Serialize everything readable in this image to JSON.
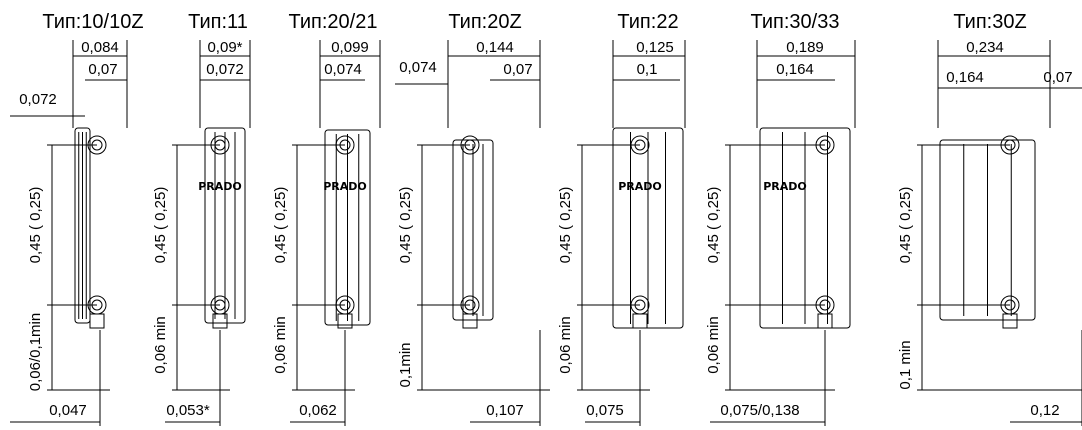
{
  "panels": [
    {
      "title": "Тип:10/10Z",
      "overall_width": "0,084",
      "depth": "0,07",
      "offset": "0,072",
      "height": "0,45 ( 0,25)",
      "floor_gap": "0,06/0,1min",
      "connection": "0,047"
    },
    {
      "title": "Тип:11",
      "overall_width": "0,09*",
      "depth": "0,072",
      "brand": "PRADO",
      "height": "0,45 ( 0,25)",
      "floor_gap": "0,06 min",
      "connection": "0,053*"
    },
    {
      "title": "Тип:20/21",
      "overall_width": "0,099",
      "depth": "0,074",
      "brand": "PRADO",
      "height": "0,45 ( 0,25)",
      "floor_gap": "0,06 min",
      "connection": "0,062"
    },
    {
      "title": "Тип:20Z",
      "overall_width": "0,144",
      "offset": "0,074",
      "depth": "0,07",
      "height": "0,45 ( 0,25)",
      "floor_gap": "0,1min",
      "connection": "0,107"
    },
    {
      "title": "Тип:22",
      "overall_width": "0,125",
      "depth": "0,1",
      "brand": "PRADO",
      "height": "0,45 ( 0,25)",
      "floor_gap": "0,06 min",
      "connection": "0,075"
    },
    {
      "title": "Тип:30/33",
      "overall_width": "0,189",
      "depth": "0,164",
      "brand": "PRADO",
      "height": "0,45 ( 0,25)",
      "floor_gap": "0,06 min",
      "connection": "0,075/0,138"
    },
    {
      "title": "Тип:30Z",
      "overall_width": "0,234",
      "inner_width": "0,164",
      "depth": "0,07",
      "height": "0,45 ( 0,25)",
      "floor_gap": "0,1 min",
      "connection": "0,12"
    }
  ]
}
